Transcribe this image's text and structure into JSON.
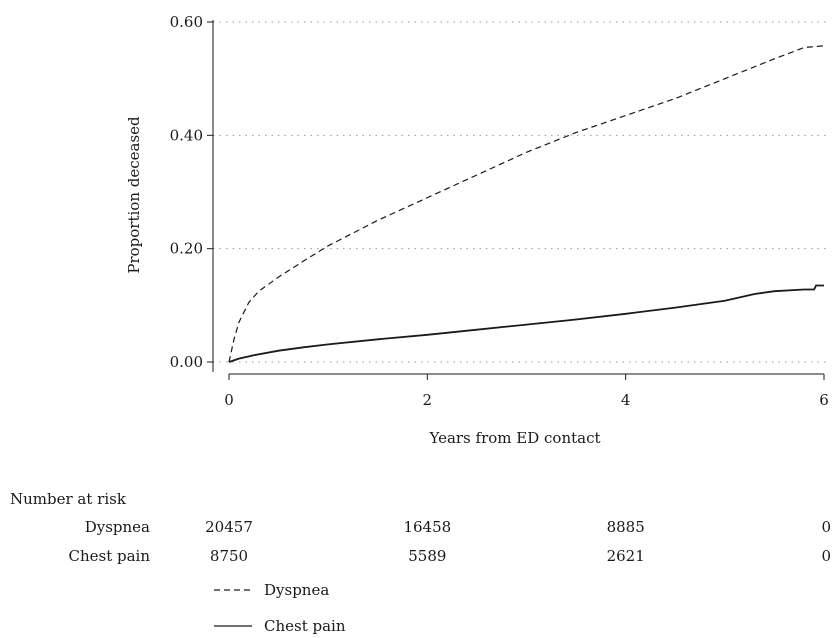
{
  "chart_data": {
    "type": "line",
    "xlabel": "Years from ED contact",
    "ylabel": "Proportion deceased",
    "xlim": [
      0,
      6
    ],
    "ylim": [
      0,
      0.6
    ],
    "x_ticks": [
      0,
      2,
      4,
      6
    ],
    "y_ticks": [
      0.0,
      0.2,
      0.4,
      0.6
    ],
    "x_tick_labels": [
      "0",
      "2",
      "4",
      "6"
    ],
    "y_tick_labels": [
      "0.00",
      "0.20",
      "0.40",
      "0.60"
    ],
    "grid": "horizontal dotted",
    "series": [
      {
        "name": "Dyspnea",
        "style": "dashed",
        "color": "#1a1a1a",
        "x": [
          0,
          0.05,
          0.1,
          0.2,
          0.3,
          0.5,
          0.75,
          1.0,
          1.5,
          2.0,
          2.5,
          3.0,
          3.5,
          4.0,
          4.5,
          5.0,
          5.5,
          5.8,
          6.0
        ],
        "y": [
          0.0,
          0.04,
          0.07,
          0.105,
          0.125,
          0.15,
          0.178,
          0.205,
          0.25,
          0.29,
          0.33,
          0.37,
          0.405,
          0.435,
          0.465,
          0.5,
          0.535,
          0.555,
          0.558
        ]
      },
      {
        "name": "Chest pain",
        "style": "solid",
        "color": "#1a1a1a",
        "x": [
          0,
          0.1,
          0.25,
          0.5,
          0.75,
          1.0,
          1.5,
          2.0,
          2.5,
          3.0,
          3.5,
          4.0,
          4.5,
          5.0,
          5.3,
          5.5,
          5.8,
          5.9,
          5.92,
          6.0
        ],
        "y": [
          0.0,
          0.006,
          0.012,
          0.02,
          0.026,
          0.031,
          0.04,
          0.048,
          0.057,
          0.066,
          0.075,
          0.085,
          0.096,
          0.108,
          0.12,
          0.125,
          0.128,
          0.128,
          0.135,
          0.135
        ]
      }
    ],
    "risk_table": {
      "title": "Number at risk",
      "rows": [
        {
          "label": "Dyspnea",
          "values": [
            "20457",
            "16458",
            "8885",
            "0"
          ]
        },
        {
          "label": "Chest pain",
          "values": [
            "8750",
            "5589",
            "2621",
            "0"
          ]
        }
      ]
    },
    "legend": {
      "items": [
        {
          "label": "Dyspnea",
          "style": "dashed"
        },
        {
          "label": "Chest pain",
          "style": "solid"
        }
      ]
    }
  }
}
